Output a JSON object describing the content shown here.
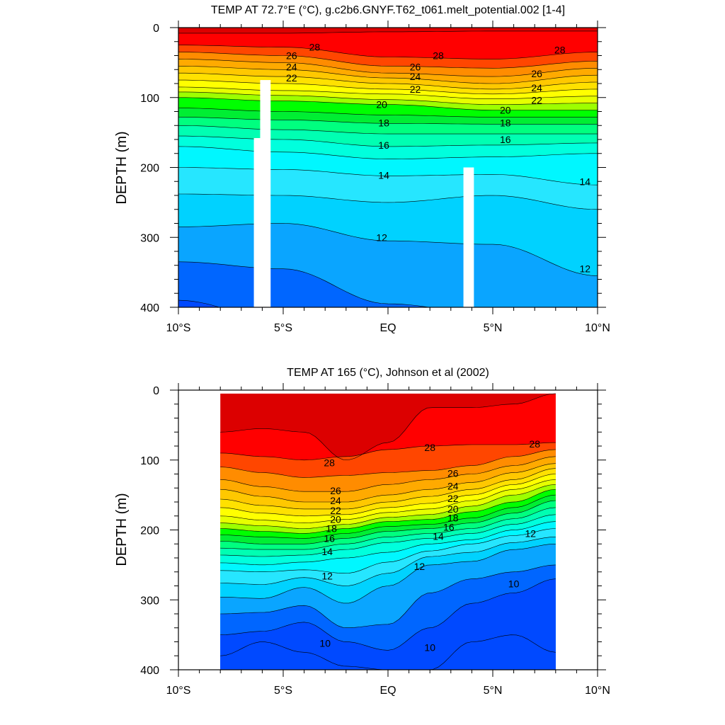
{
  "chart_data": [
    {
      "type": "contour",
      "title": "TEMP AT  72.7°E (°C), g.c2b6.GNYF.T62_t061.melt_potential.002 [1-4]",
      "ylabel": "DEPTH (m)",
      "xlim": [
        -10,
        10
      ],
      "ylim": [
        400,
        0
      ],
      "x_ticks": [
        {
          "value": -10,
          "label": "10°S"
        },
        {
          "value": -5,
          "label": "5°S"
        },
        {
          "value": 0,
          "label": "EQ"
        },
        {
          "value": 5,
          "label": "5°N"
        },
        {
          "value": 10,
          "label": "10°N"
        }
      ],
      "y_ticks": [
        {
          "value": 0,
          "label": "0"
        },
        {
          "value": 100,
          "label": "100"
        },
        {
          "value": 200,
          "label": "200"
        },
        {
          "value": 300,
          "label": "300"
        },
        {
          "value": 400,
          "label": "400"
        }
      ],
      "data_x_range": [
        -10,
        10
      ],
      "isotherms": [
        {
          "temp": 29,
          "depths": [
            8,
            8,
            6,
            5,
            5
          ]
        },
        {
          "temp": 28,
          "depths": [
            25,
            28,
            42,
            45,
            35
          ]
        },
        {
          "temp": 27,
          "depths": [
            35,
            40,
            55,
            58,
            48
          ]
        },
        {
          "temp": 26,
          "depths": [
            45,
            50,
            65,
            70,
            58
          ]
        },
        {
          "temp": 25,
          "depths": [
            55,
            60,
            72,
            80,
            68
          ]
        },
        {
          "temp": 24,
          "depths": [
            65,
            70,
            80,
            88,
            78
          ]
        },
        {
          "temp": 23,
          "depths": [
            75,
            80,
            88,
            95,
            88
          ]
        },
        {
          "temp": 22,
          "depths": [
            85,
            90,
            95,
            102,
            98
          ]
        },
        {
          "temp": 21,
          "depths": [
            92,
            97,
            103,
            110,
            108
          ]
        },
        {
          "temp": 20,
          "depths": [
            100,
            105,
            110,
            118,
            118
          ]
        },
        {
          "temp": 19,
          "depths": [
            115,
            120,
            125,
            128,
            128
          ]
        },
        {
          "temp": 18,
          "depths": [
            128,
            132,
            137,
            138,
            138
          ]
        },
        {
          "temp": 17,
          "depths": [
            140,
            146,
            152,
            152,
            152
          ]
        },
        {
          "temp": 16,
          "depths": [
            155,
            160,
            170,
            168,
            165
          ]
        },
        {
          "temp": 15,
          "depths": [
            170,
            178,
            188,
            185,
            180
          ]
        },
        {
          "temp": 14,
          "depths": [
            200,
            203,
            212,
            210,
            225
          ]
        },
        {
          "temp": 13,
          "depths": [
            238,
            240,
            250,
            240,
            260
          ]
        },
        {
          "temp": 12,
          "depths": [
            285,
            280,
            305,
            310,
            355
          ]
        },
        {
          "temp": 11,
          "depths": [
            335,
            345,
            395,
            410,
            420
          ]
        },
        {
          "temp": 10,
          "depths": [
            390,
            420,
            440,
            440,
            450
          ]
        }
      ],
      "isotherm_x": [
        -10,
        -5,
        0,
        5,
        10
      ],
      "masked_columns": [
        {
          "x_start": -6.4,
          "x_end": -5.8,
          "depth_top": 158
        },
        {
          "x_start": -6.1,
          "x_end": -5.6,
          "depth_top": 75
        },
        {
          "x_start": 3.6,
          "x_end": 4.1,
          "depth_top": 200
        }
      ],
      "contour_labels": [
        {
          "text": "28",
          "x": -3.5,
          "depth": 28
        },
        {
          "text": "26",
          "x": -4.6,
          "depth": 40
        },
        {
          "text": "24",
          "x": -4.6,
          "depth": 56
        },
        {
          "text": "22",
          "x": -4.6,
          "depth": 72
        },
        {
          "text": "28",
          "x": 2.4,
          "depth": 40
        },
        {
          "text": "26",
          "x": 1.3,
          "depth": 56
        },
        {
          "text": "24",
          "x": 1.3,
          "depth": 70
        },
        {
          "text": "22",
          "x": 1.3,
          "depth": 88
        },
        {
          "text": "28",
          "x": 8.2,
          "depth": 32
        },
        {
          "text": "26",
          "x": 7.1,
          "depth": 66
        },
        {
          "text": "24",
          "x": 7.1,
          "depth": 86
        },
        {
          "text": "22",
          "x": 7.1,
          "depth": 104
        },
        {
          "text": "20",
          "x": -0.3,
          "depth": 110
        },
        {
          "text": "20",
          "x": 5.6,
          "depth": 118
        },
        {
          "text": "18",
          "x": -0.2,
          "depth": 136
        },
        {
          "text": "18",
          "x": 5.6,
          "depth": 136
        },
        {
          "text": "16",
          "x": -0.2,
          "depth": 168
        },
        {
          "text": "16",
          "x": 5.6,
          "depth": 160
        },
        {
          "text": "14",
          "x": -0.2,
          "depth": 211
        },
        {
          "text": "14",
          "x": 9.4,
          "depth": 220
        },
        {
          "text": "12",
          "x": -0.3,
          "depth": 300
        },
        {
          "text": "12",
          "x": 9.4,
          "depth": 345
        }
      ]
    },
    {
      "type": "contour",
      "title": "TEMP AT 165 (°C), Johnson et al (2002)",
      "ylabel": "DEPTH (m)",
      "xlim": [
        -10,
        10
      ],
      "ylim": [
        400,
        0
      ],
      "x_ticks": [
        {
          "value": -10,
          "label": "10°S"
        },
        {
          "value": -5,
          "label": "5°S"
        },
        {
          "value": 0,
          "label": "EQ"
        },
        {
          "value": 5,
          "label": "5°N"
        },
        {
          "value": 10,
          "label": "10°N"
        }
      ],
      "y_ticks": [
        {
          "value": 0,
          "label": "0"
        },
        {
          "value": 100,
          "label": "100"
        },
        {
          "value": 200,
          "label": "200"
        },
        {
          "value": 300,
          "label": "300"
        },
        {
          "value": 400,
          "label": "400"
        }
      ],
      "data_x_range": [
        -8,
        8
      ],
      "data_top_depth": 5,
      "isotherms": [
        {
          "temp": 29,
          "depths": [
            60,
            55,
            60,
            100,
            75,
            25,
            25,
            20,
            5
          ]
        },
        {
          "temp": 28,
          "depths": [
            90,
            95,
            100,
            95,
            85,
            80,
            78,
            78,
            75
          ]
        },
        {
          "temp": 27,
          "depths": [
            110,
            118,
            125,
            122,
            118,
            115,
            108,
            95,
            85
          ]
        },
        {
          "temp": 26,
          "depths": [
            128,
            138,
            145,
            145,
            135,
            128,
            120,
            108,
            95
          ]
        },
        {
          "temp": 25,
          "depths": [
            142,
            152,
            160,
            160,
            150,
            142,
            132,
            118,
            105
          ]
        },
        {
          "temp": 24,
          "depths": [
            156,
            165,
            170,
            170,
            160,
            152,
            142,
            128,
            112
          ]
        },
        {
          "temp": 23,
          "depths": [
            168,
            176,
            180,
            178,
            168,
            162,
            150,
            135,
            120
          ]
        },
        {
          "temp": 22,
          "depths": [
            180,
            186,
            190,
            185,
            175,
            170,
            158,
            142,
            128
          ]
        },
        {
          "temp": 21,
          "depths": [
            190,
            194,
            198,
            192,
            182,
            178,
            166,
            150,
            135
          ]
        },
        {
          "temp": 20,
          "depths": [
            198,
            202,
            205,
            198,
            188,
            185,
            174,
            160,
            142
          ]
        },
        {
          "temp": 19,
          "depths": [
            207,
            210,
            212,
            205,
            195,
            192,
            183,
            168,
            150
          ]
        },
        {
          "temp": 18,
          "depths": [
            216,
            220,
            220,
            212,
            202,
            198,
            190,
            176,
            158
          ]
        },
        {
          "temp": 17,
          "depths": [
            226,
            228,
            228,
            220,
            210,
            205,
            198,
            184,
            168
          ]
        },
        {
          "temp": 16,
          "depths": [
            236,
            238,
            236,
            228,
            218,
            212,
            205,
            192,
            178
          ]
        },
        {
          "temp": 15,
          "depths": [
            247,
            250,
            246,
            240,
            232,
            220,
            214,
            200,
            188
          ]
        },
        {
          "temp": 14,
          "depths": [
            258,
            260,
            257,
            262,
            246,
            230,
            220,
            208,
            198
          ]
        },
        {
          "temp": 13,
          "depths": [
            276,
            278,
            268,
            280,
            262,
            238,
            232,
            218,
            210
          ]
        },
        {
          "temp": 12,
          "depths": [
            296,
            298,
            282,
            305,
            280,
            250,
            245,
            228,
            220
          ]
        },
        {
          "temp": 11,
          "depths": [
            320,
            318,
            308,
            340,
            335,
            290,
            270,
            260,
            250
          ]
        },
        {
          "temp": 10,
          "depths": [
            350,
            345,
            332,
            360,
            372,
            340,
            305,
            290,
            270
          ]
        },
        {
          "temp": 9,
          "depths": [
            380,
            360,
            375,
            395,
            400,
            400,
            360,
            350,
            375
          ]
        }
      ],
      "isotherm_x": [
        -8,
        -6,
        -4,
        -2,
        0,
        2,
        4,
        6,
        8
      ],
      "contour_labels": [
        {
          "text": "28",
          "x": 2.0,
          "depth": 82
        },
        {
          "text": "28",
          "x": 7.0,
          "depth": 77
        },
        {
          "text": "28",
          "x": -2.8,
          "depth": 104
        },
        {
          "text": "26",
          "x": 3.1,
          "depth": 119
        },
        {
          "text": "24",
          "x": 3.1,
          "depth": 137
        },
        {
          "text": "22",
          "x": 3.1,
          "depth": 155
        },
        {
          "text": "20",
          "x": 3.1,
          "depth": 170
        },
        {
          "text": "18",
          "x": 3.1,
          "depth": 183
        },
        {
          "text": "16",
          "x": 2.9,
          "depth": 196
        },
        {
          "text": "14",
          "x": 2.4,
          "depth": 209
        },
        {
          "text": "26",
          "x": -2.5,
          "depth": 144
        },
        {
          "text": "24",
          "x": -2.5,
          "depth": 158
        },
        {
          "text": "22",
          "x": -2.5,
          "depth": 172
        },
        {
          "text": "20",
          "x": -2.5,
          "depth": 185
        },
        {
          "text": "18",
          "x": -2.7,
          "depth": 198
        },
        {
          "text": "16",
          "x": -2.8,
          "depth": 212
        },
        {
          "text": "14",
          "x": -2.9,
          "depth": 231
        },
        {
          "text": "12",
          "x": -2.9,
          "depth": 266
        },
        {
          "text": "12",
          "x": 1.5,
          "depth": 252
        },
        {
          "text": "12",
          "x": 6.8,
          "depth": 205
        },
        {
          "text": "10",
          "x": -3.0,
          "depth": 362
        },
        {
          "text": "10",
          "x": 2.0,
          "depth": 368
        },
        {
          "text": "10",
          "x": 6.0,
          "depth": 277
        }
      ]
    }
  ],
  "colors": {
    "axis": "#000000",
    "mask": "#ffffff",
    "palette": [
      {
        "min": -100,
        "max": 10,
        "color": "#0049ff"
      },
      {
        "min": 10,
        "max": 11,
        "color": "#0066ff"
      },
      {
        "min": 11,
        "max": 12,
        "color": "#0aa5ff"
      },
      {
        "min": 12,
        "max": 13,
        "color": "#00d2ff"
      },
      {
        "min": 13,
        "max": 14,
        "color": "#26e6ff"
      },
      {
        "min": 14,
        "max": 15,
        "color": "#00f7ff"
      },
      {
        "min": 15,
        "max": 16,
        "color": "#00ffdd"
      },
      {
        "min": 16,
        "max": 17,
        "color": "#00ffb2"
      },
      {
        "min": 17,
        "max": 18,
        "color": "#00ff7f"
      },
      {
        "min": 18,
        "max": 19,
        "color": "#00ee33"
      },
      {
        "min": 19,
        "max": 20,
        "color": "#00ff00"
      },
      {
        "min": 20,
        "max": 21,
        "color": "#9dff00"
      },
      {
        "min": 21,
        "max": 22,
        "color": "#e6ff00"
      },
      {
        "min": 22,
        "max": 23,
        "color": "#ffff00"
      },
      {
        "min": 23,
        "max": 24,
        "color": "#ffe100"
      },
      {
        "min": 24,
        "max": 25,
        "color": "#ffc800"
      },
      {
        "min": 25,
        "max": 26,
        "color": "#ffaa00"
      },
      {
        "min": 26,
        "max": 27,
        "color": "#ff8c00"
      },
      {
        "min": 27,
        "max": 28,
        "color": "#ff4600"
      },
      {
        "min": 28,
        "max": 29,
        "color": "#ff0000"
      },
      {
        "min": 29,
        "max": 100,
        "color": "#dc0000"
      }
    ]
  }
}
